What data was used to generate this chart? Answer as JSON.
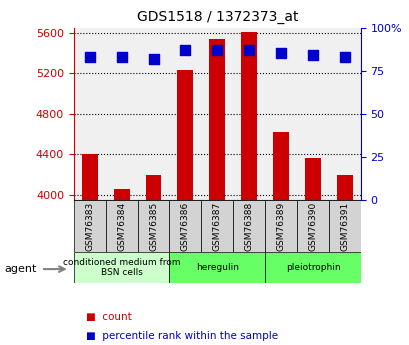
{
  "title": "GDS1518 / 1372373_at",
  "samples": [
    "GSM76383",
    "GSM76384",
    "GSM76385",
    "GSM76386",
    "GSM76387",
    "GSM76388",
    "GSM76389",
    "GSM76390",
    "GSM76391"
  ],
  "counts": [
    4400,
    4060,
    4200,
    5230,
    5540,
    5610,
    4620,
    4365,
    4200
  ],
  "percentile_ranks": [
    83,
    83,
    82,
    87,
    87,
    87,
    85,
    84,
    83
  ],
  "ylim": [
    3950,
    5650
  ],
  "yticks": [
    4000,
    4400,
    4800,
    5200,
    5600
  ],
  "y2lim": [
    0,
    100
  ],
  "y2ticks": [
    0,
    25,
    50,
    75,
    100
  ],
  "y2ticklabels": [
    "0",
    "25",
    "50",
    "75",
    "100%"
  ],
  "groups": [
    {
      "label": "conditioned medium from\nBSN cells",
      "start": 0,
      "end": 3,
      "color": "#ccffcc"
    },
    {
      "label": "heregulin",
      "start": 3,
      "end": 6,
      "color": "#66ff66"
    },
    {
      "label": "pleiotrophin",
      "start": 6,
      "end": 9,
      "color": "#66ff66"
    }
  ],
  "bar_color": "#cc0000",
  "dot_color": "#0000cc",
  "bar_width": 0.5,
  "dot_size": 60,
  "grid_color": "#000000",
  "background_color": "#ffffff",
  "plot_bg_color": "#f0f0f0",
  "agent_label": "agent",
  "legend_items": [
    {
      "color": "#cc0000",
      "label": "count"
    },
    {
      "color": "#0000cc",
      "label": "percentile rank within the sample"
    }
  ]
}
